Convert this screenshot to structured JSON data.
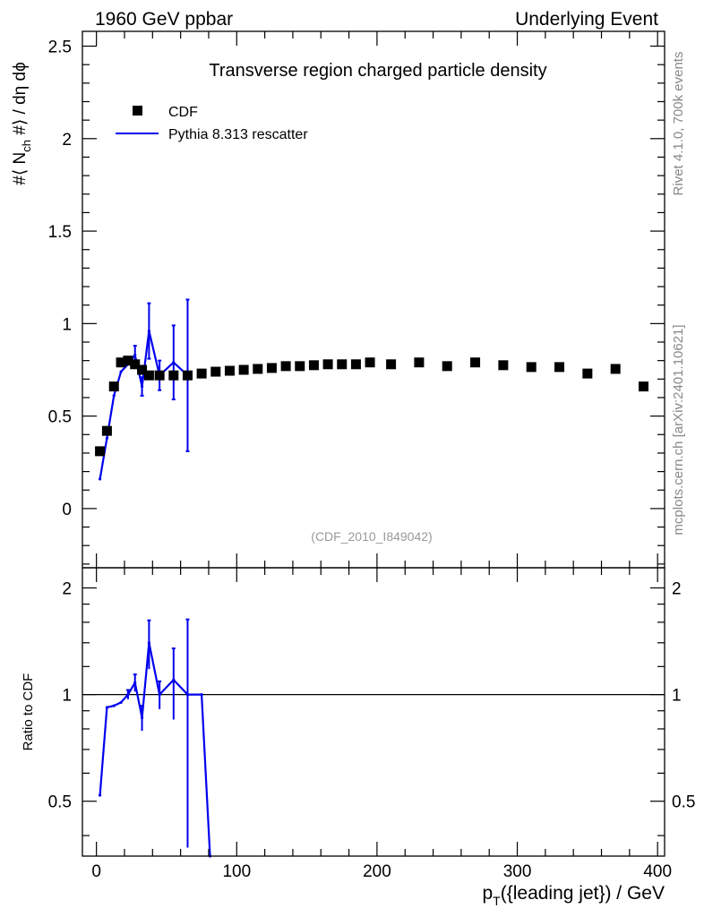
{
  "header": {
    "left": "1960 GeV ppbar",
    "right": "Underlying Event"
  },
  "side": {
    "rivet": "Rivet 4.1.0,  700k events",
    "mcplots": "mcplots.cern.ch [arXiv:2401.10621]"
  },
  "colors": {
    "data": "#000000",
    "mc": "#0000ee",
    "ref_id": "#999999",
    "side": "#888888"
  },
  "chart_data": [
    {
      "type": "scatter",
      "panel": "main",
      "title": "Transverse region charged particle density",
      "ref_id": "(CDF_2010_I849042)",
      "ylabel": {
        "base": "#⟨ N",
        "sub": "ch",
        "rest": " #⟩ / dη dϕ"
      },
      "xlim": [
        -10,
        405
      ],
      "ylim": [
        -0.32,
        2.58
      ],
      "yticks": [
        0,
        0.5,
        1,
        1.5,
        2,
        2.5
      ],
      "ytick_labels": [
        "0",
        "0.5",
        "1",
        "1.5",
        "2",
        "2.5"
      ],
      "legend": [
        {
          "label": "CDF",
          "kind": "marker"
        },
        {
          "label": "Pythia 8.313 rescatter",
          "kind": "line"
        }
      ],
      "series": [
        {
          "name": "CDF",
          "kind": "points",
          "x": [
            2.5,
            7.5,
            12.5,
            17.5,
            22.5,
            27.5,
            32.5,
            37.5,
            45,
            55,
            65,
            75,
            85,
            95,
            105,
            115,
            125,
            135,
            145,
            155,
            165,
            175,
            185,
            195,
            210,
            230,
            250,
            270,
            290,
            310,
            330,
            350,
            370,
            390
          ],
          "y": [
            0.31,
            0.42,
            0.66,
            0.79,
            0.8,
            0.78,
            0.75,
            0.72,
            0.72,
            0.72,
            0.72,
            0.73,
            0.74,
            0.745,
            0.75,
            0.755,
            0.76,
            0.77,
            0.77,
            0.775,
            0.78,
            0.78,
            0.78,
            0.79,
            0.78,
            0.79,
            0.77,
            0.79,
            0.775,
            0.765,
            0.765,
            0.73,
            0.755,
            0.66
          ]
        },
        {
          "name": "Pythia 8.313 rescatter",
          "kind": "line",
          "x": [
            2.5,
            7.5,
            12.5,
            17.5,
            22.5,
            27.5,
            32.5,
            37.5,
            45,
            55,
            65
          ],
          "y": [
            0.16,
            0.38,
            0.61,
            0.74,
            0.78,
            0.83,
            0.66,
            0.96,
            0.72,
            0.79,
            0.72
          ],
          "err": [
            0,
            0,
            0,
            0,
            0,
            0.05,
            0.05,
            0.15,
            0.08,
            0.2,
            0.41
          ]
        }
      ]
    },
    {
      "type": "line",
      "panel": "ratio",
      "ylabel": "Ratio to CDF",
      "xlabel": {
        "base": "p",
        "sub": "T",
        "rest": "({leading jet}) / GeV"
      },
      "xlim": [
        -10,
        405
      ],
      "ylim": [
        0.35,
        2.28
      ],
      "yticks": [
        0.5,
        1,
        2
      ],
      "ytick_labels": [
        "0.5",
        "1",
        "2"
      ],
      "xticks": [
        0,
        100,
        200,
        300,
        400
      ],
      "xtick_labels": [
        "0",
        "100",
        "200",
        "300",
        "400"
      ],
      "reference": 1,
      "series": [
        {
          "name": "Pythia 8.313 rescatter",
          "x": [
            2.5,
            7.5,
            12.5,
            17.5,
            22.5,
            27.5,
            32.5,
            37.5,
            45,
            55,
            65,
            75,
            81
          ],
          "y": [
            0.52,
            0.92,
            0.93,
            0.95,
            1.0,
            1.08,
            0.86,
            1.4,
            1.0,
            1.1,
            1.0,
            1.0,
            0.35
          ],
          "err": [
            0,
            0,
            0,
            0,
            0.03,
            0.06,
            0.07,
            0.22,
            0.09,
            0.25,
            0.63,
            0,
            0
          ]
        }
      ]
    }
  ]
}
